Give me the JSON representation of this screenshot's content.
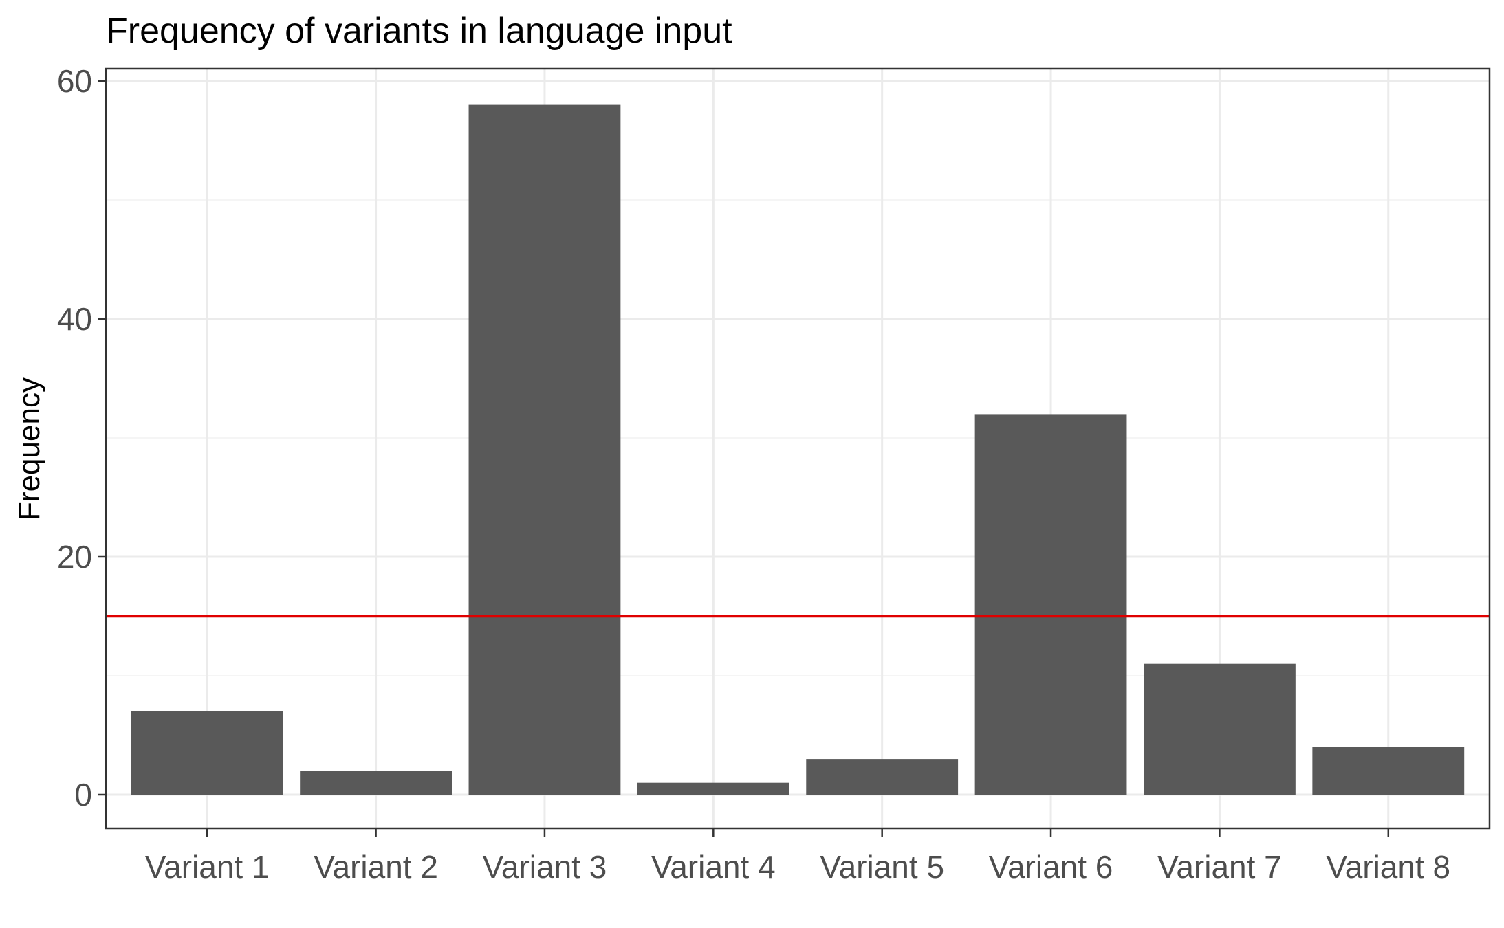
{
  "chart_data": {
    "type": "bar",
    "title": "Frequency of variants in language input",
    "xlabel": "",
    "ylabel": "Frequency",
    "categories": [
      "Variant 1",
      "Variant 2",
      "Variant 3",
      "Variant 4",
      "Variant 5",
      "Variant 6",
      "Variant 7",
      "Variant 8"
    ],
    "values": [
      7,
      2,
      58,
      1,
      3,
      32,
      11,
      4
    ],
    "ylim": [
      0,
      61
    ],
    "yticks": [
      0,
      20,
      40,
      60
    ],
    "yticks_labels": [
      "0",
      "20",
      "40",
      "60"
    ],
    "reference_line": {
      "y": 15,
      "color": "#e00000"
    },
    "bar_color": "#595959",
    "grid": true,
    "legend": "none"
  }
}
